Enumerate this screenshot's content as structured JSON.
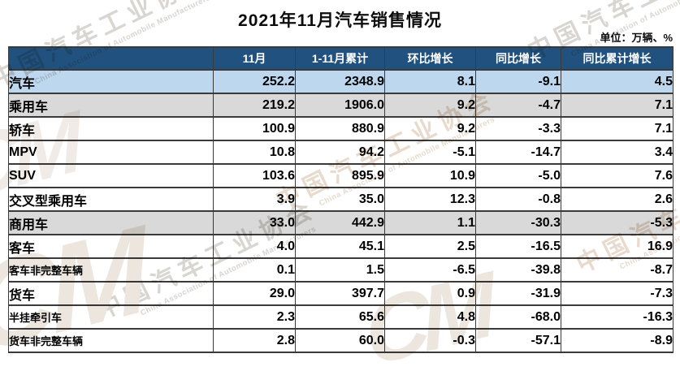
{
  "title": "2021年11月汽车销售情况",
  "unit_note": "单位：万辆、%",
  "watermark": {
    "cn": "中国汽车工业协会",
    "en": "China Association of Automobile Manufacturers",
    "logo": "CM"
  },
  "colors": {
    "header_bg": "#21527f",
    "header_text": "#ffffff",
    "row_highlight_blue": "#bdd7ee",
    "row_highlight_gray": "#d9d9d9",
    "border": "#3a3a3a"
  },
  "table": {
    "columns": [
      "",
      "11月",
      "1-11月累计",
      "环比增长",
      "同比增长",
      "同比累计增长"
    ],
    "rows": [
      {
        "label": "汽车",
        "level": 0,
        "bg": "blue",
        "values": [
          "252.2",
          "2348.9",
          "8.1",
          "-9.1",
          "4.5"
        ]
      },
      {
        "label": "乘用车",
        "level": 1,
        "bg": "gray",
        "values": [
          "219.2",
          "1906.0",
          "9.2",
          "-4.7",
          "7.1"
        ]
      },
      {
        "label": "轿车",
        "level": 2,
        "bg": "white",
        "values": [
          "100.9",
          "880.9",
          "9.2",
          "-3.3",
          "7.1"
        ]
      },
      {
        "label": "MPV",
        "level": 2,
        "bg": "white",
        "values": [
          "10.8",
          "94.2",
          "-5.1",
          "-14.7",
          "3.4"
        ]
      },
      {
        "label": "SUV",
        "level": 2,
        "bg": "white",
        "values": [
          "103.6",
          "895.9",
          "10.9",
          "-5.0",
          "7.6"
        ]
      },
      {
        "label": "交叉型乘用车",
        "level": 2,
        "bg": "white",
        "values": [
          "3.9",
          "35.0",
          "12.3",
          "-0.8",
          "2.6"
        ]
      },
      {
        "label": "商用车",
        "level": 1,
        "bg": "gray",
        "values": [
          "33.0",
          "442.9",
          "1.1",
          "-30.3",
          "-5.3"
        ]
      },
      {
        "label": "客车",
        "level": 2,
        "bg": "white",
        "values": [
          "4.0",
          "45.1",
          "2.5",
          "-16.5",
          "16.9"
        ]
      },
      {
        "label": "客车非完整车辆",
        "level": 3,
        "bg": "white",
        "values": [
          "0.1",
          "1.5",
          "-6.5",
          "-39.8",
          "-8.7"
        ]
      },
      {
        "label": "货车",
        "level": 2,
        "bg": "white",
        "values": [
          "29.0",
          "397.7",
          "0.9",
          "-31.9",
          "-7.3"
        ]
      },
      {
        "label": "半挂牵引车",
        "level": 3,
        "bg": "white",
        "values": [
          "2.3",
          "65.6",
          "4.8",
          "-68.0",
          "-16.3"
        ]
      },
      {
        "label": "货车非完整车辆",
        "level": 3,
        "bg": "white",
        "values": [
          "2.8",
          "60.0",
          "-0.3",
          "-57.1",
          "-8.9"
        ]
      }
    ]
  }
}
